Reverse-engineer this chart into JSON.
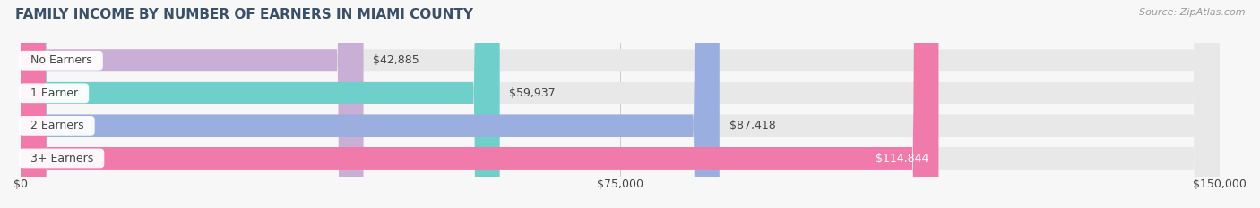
{
  "title": "FAMILY INCOME BY NUMBER OF EARNERS IN MIAMI COUNTY",
  "source": "Source: ZipAtlas.com",
  "categories": [
    "No Earners",
    "1 Earner",
    "2 Earners",
    "3+ Earners"
  ],
  "values": [
    42885,
    59937,
    87418,
    114844
  ],
  "bar_colors": [
    "#c9aed6",
    "#6ecfcb",
    "#9baee0",
    "#f07aaa"
  ],
  "value_labels": [
    "$42,885",
    "$59,937",
    "$87,418",
    "$114,844"
  ],
  "value_label_inside": [
    false,
    false,
    false,
    true
  ],
  "xlim": [
    0,
    150000
  ],
  "xtick_values": [
    0,
    75000,
    150000
  ],
  "xtick_labels": [
    "$0",
    "$75,000",
    "$150,000"
  ],
  "background_color": "#f7f7f7",
  "bar_bg_color": "#e8e8e8",
  "title_color": "#3a5068",
  "source_color": "#999999",
  "label_color": "#444444",
  "value_inside_color": "#ffffff",
  "value_outside_color": "#444444",
  "title_fontsize": 11,
  "tick_fontsize": 9,
  "value_fontsize": 9,
  "cat_fontsize": 9,
  "bar_height": 0.68
}
